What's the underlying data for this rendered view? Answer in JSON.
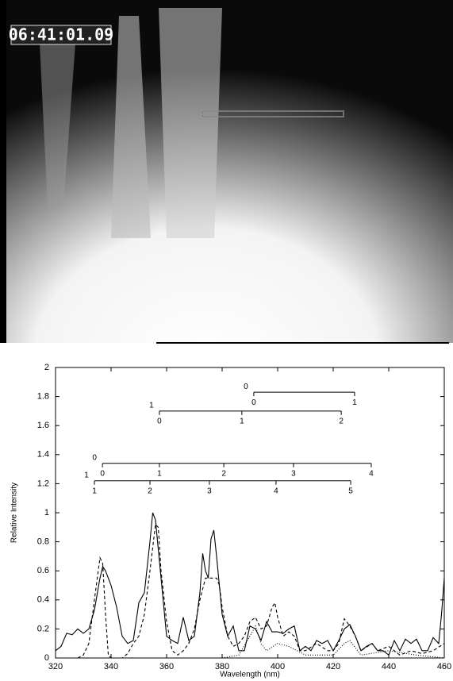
{
  "image": {
    "timestamp": "06:41:01.09"
  },
  "chart_data": {
    "type": "line",
    "xlabel": "Wavelength (nm)",
    "ylabel": "Relative Intensity",
    "xlim": [
      320,
      460
    ],
    "ylim": [
      0,
      2
    ],
    "xticks": [
      320,
      340,
      360,
      380,
      400,
      420,
      440,
      460
    ],
    "yticks": [
      0,
      0.2,
      0.4,
      0.6,
      0.8,
      1,
      1.2,
      1.4,
      1.6,
      1.8,
      2
    ],
    "series": [
      {
        "color": "#000000",
        "style": "solid",
        "x": [
          320,
          322,
          324,
          326,
          328,
          330,
          332,
          334,
          336,
          337,
          338,
          340,
          342,
          344,
          346,
          348,
          350,
          352,
          354,
          355,
          356,
          358,
          360,
          362,
          364,
          366,
          368,
          370,
          372,
          373,
          374,
          375,
          376,
          377,
          378,
          380,
          382,
          384,
          386,
          388,
          390,
          392,
          394,
          396,
          398,
          400,
          402,
          404,
          406,
          408,
          410,
          412,
          414,
          416,
          418,
          420,
          422,
          424,
          426,
          428,
          430,
          432,
          434,
          436,
          438,
          440,
          442,
          444,
          446,
          448,
          450,
          452,
          454,
          456,
          458,
          459,
          460
        ],
        "values": [
          0.05,
          0.08,
          0.17,
          0.16,
          0.2,
          0.17,
          0.2,
          0.33,
          0.55,
          0.63,
          0.6,
          0.5,
          0.35,
          0.15,
          0.1,
          0.12,
          0.38,
          0.45,
          0.8,
          1.0,
          0.95,
          0.55,
          0.15,
          0.12,
          0.1,
          0.28,
          0.12,
          0.15,
          0.45,
          0.72,
          0.6,
          0.55,
          0.82,
          0.88,
          0.7,
          0.3,
          0.15,
          0.22,
          0.05,
          0.05,
          0.22,
          0.2,
          0.12,
          0.25,
          0.18,
          0.18,
          0.17,
          0.2,
          0.22,
          0.05,
          0.08,
          0.05,
          0.12,
          0.1,
          0.12,
          0.05,
          0.12,
          0.2,
          0.23,
          0.15,
          0.05,
          0.08,
          0.1,
          0.05,
          0.05,
          0.02,
          0.12,
          0.05,
          0.13,
          0.1,
          0.13,
          0.05,
          0.05,
          0.14,
          0.1,
          0.3,
          0.55
        ]
      },
      {
        "color": "#000000",
        "style": "dashed",
        "x": [
          320,
          328,
          330,
          332,
          334,
          336,
          337,
          338,
          339,
          340,
          344,
          346,
          348,
          350,
          352,
          354,
          356,
          357,
          358,
          360,
          362,
          364,
          366,
          368,
          370,
          372,
          374,
          376,
          378,
          379,
          380,
          382,
          384,
          386,
          388,
          390,
          392,
          394,
          396,
          398,
          399,
          400,
          402,
          404,
          406,
          408,
          410,
          414,
          418,
          420,
          422,
          424,
          426,
          428,
          430,
          434,
          436,
          440,
          444,
          448,
          452,
          456,
          460
        ],
        "values": [
          0,
          0,
          0.02,
          0.1,
          0.4,
          0.69,
          0.65,
          0.3,
          0.02,
          0,
          0,
          0.03,
          0.1,
          0.15,
          0.3,
          0.6,
          0.92,
          0.9,
          0.6,
          0.25,
          0.05,
          0.02,
          0.05,
          0.1,
          0.2,
          0.4,
          0.55,
          0.55,
          0.55,
          0.5,
          0.35,
          0.15,
          0.08,
          0.1,
          0.15,
          0.25,
          0.28,
          0.2,
          0.22,
          0.35,
          0.38,
          0.28,
          0.15,
          0.18,
          0.15,
          0.05,
          0.05,
          0.1,
          0.05,
          0.05,
          0.1,
          0.27,
          0.22,
          0.15,
          0.05,
          0.1,
          0.05,
          0.08,
          0.02,
          0.05,
          0.03,
          0.05,
          0.1
        ]
      },
      {
        "color": "#000000",
        "style": "dotted",
        "x": [
          380,
          386,
          390,
          392,
          394,
          396,
          400,
          404,
          410,
          420,
          424,
          426,
          430,
          440,
          450,
          460
        ],
        "values": [
          0,
          0.02,
          0.15,
          0.22,
          0.1,
          0.05,
          0.1,
          0.08,
          0.02,
          0.02,
          0.1,
          0.12,
          0.02,
          0.05,
          0.02,
          0
        ]
      }
    ],
    "ladders": [
      {
        "y": 1.83,
        "label": "0",
        "ticks": [
          {
            "x": 391.4,
            "label": "0"
          },
          {
            "x": 427.7,
            "label": "1"
          }
        ]
      },
      {
        "y": 1.7,
        "label": "1",
        "ticks": [
          {
            "x": 357.4,
            "label": "0"
          },
          {
            "x": 387.1,
            "label": "1"
          },
          {
            "x": 422.9,
            "label": "2"
          }
        ]
      },
      {
        "y": 1.34,
        "label": "0",
        "ticks": [
          {
            "x": 336.9,
            "label": "0"
          },
          {
            "x": 357.4,
            "label": "1"
          },
          {
            "x": 380.6,
            "label": "2"
          },
          {
            "x": 405.7,
            "label": "3"
          },
          {
            "x": 433.7,
            "label": "4"
          }
        ]
      },
      {
        "y": 1.22,
        "label": "1",
        "ticks": [
          {
            "x": 334,
            "label": "1"
          },
          {
            "x": 354,
            "label": "2"
          },
          {
            "x": 375.4,
            "label": "3"
          },
          {
            "x": 399.4,
            "label": "4"
          },
          {
            "x": 426.3,
            "label": "5"
          }
        ]
      }
    ]
  }
}
